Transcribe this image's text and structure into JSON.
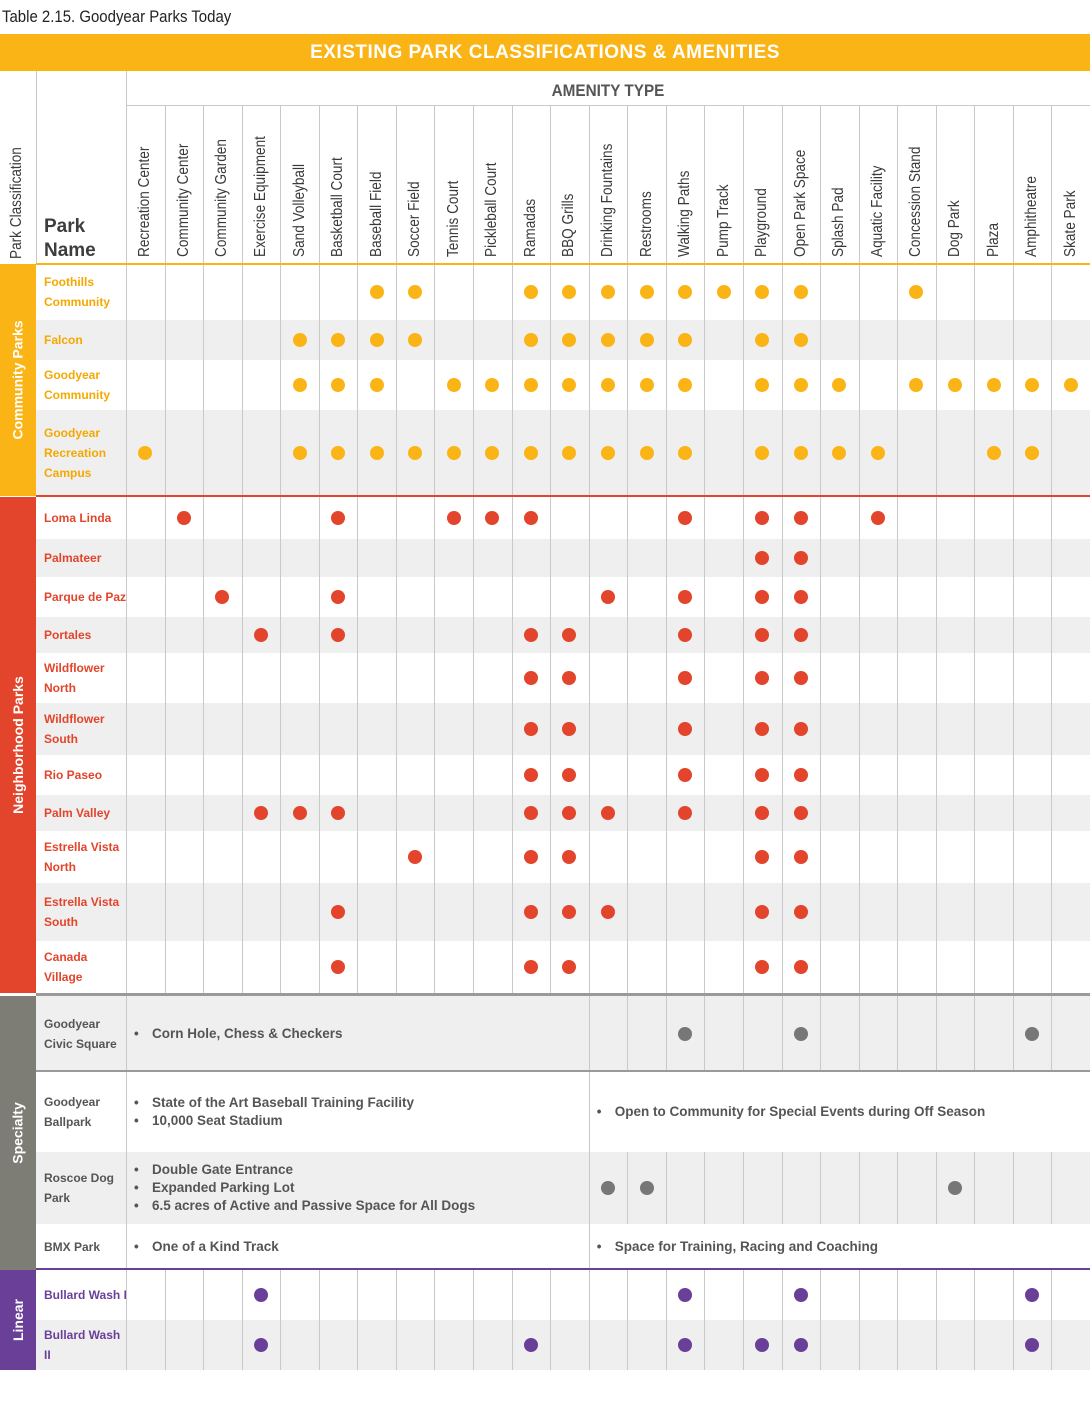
{
  "caption": "Table 2.15. Goodyear Parks Today",
  "banner": "EXISTING PARK CLASSIFICATIONS & AMENITIES",
  "header": {
    "amenity_type": "AMENITY TYPE",
    "park_classification": "Park Classification",
    "park_name": "Park Name"
  },
  "amenities": [
    "Recreation Center",
    "Community Center",
    "Community Garden",
    "Exercise Equipment",
    "Sand Volleyball",
    "Basketball Court",
    "Baseball Field",
    "Soccer Field",
    "Tennis Court",
    "Pickleball Court",
    "Ramadas",
    "BBQ Grills",
    "Drinking Fountains",
    "Restrooms",
    "Walking Paths",
    "Pump Track",
    "Playground",
    "Open Park Space",
    "Splash Pad",
    "Aquatic Facility",
    "Concession Stand",
    "Dog Park",
    "Plaza",
    "Amphitheatre",
    "Skate Park"
  ],
  "colors": {
    "community": "#fbb415",
    "neighborhood": "#e2452b",
    "specialty": "#7d7d75",
    "linear": "#6a3f98",
    "dot_specialty": "#777777",
    "stripe": "#efefef"
  },
  "sections": [
    {
      "key": "community",
      "label": "Community Parks",
      "color": "#fbb415",
      "dot": "#fbb415",
      "text": "#f5a800",
      "rows": [
        {
          "name": "Foothills Community",
          "amenities": [
            6,
            7,
            10,
            11,
            12,
            13,
            14,
            15,
            16,
            17,
            20
          ]
        },
        {
          "name": "Falcon",
          "amenities": [
            4,
            5,
            6,
            7,
            10,
            11,
            12,
            13,
            14,
            16,
            17
          ]
        },
        {
          "name": "Goodyear Community",
          "amenities": [
            4,
            5,
            6,
            8,
            9,
            10,
            11,
            12,
            13,
            14,
            16,
            17,
            18,
            20,
            21,
            22,
            23,
            24
          ]
        },
        {
          "name": "Goodyear Recreation Campus",
          "amenities": [
            0,
            4,
            5,
            6,
            7,
            8,
            9,
            10,
            11,
            12,
            13,
            14,
            16,
            17,
            18,
            19,
            22,
            23
          ]
        }
      ]
    },
    {
      "key": "neighborhood",
      "label": "Neighborhood Parks",
      "color": "#e2452b",
      "dot": "#e2452b",
      "text": "#e2452b",
      "rows": [
        {
          "name": "Loma Linda",
          "amenities": [
            1,
            5,
            8,
            9,
            10,
            14,
            16,
            17,
            19
          ]
        },
        {
          "name": "Palmateer",
          "amenities": [
            16,
            17
          ]
        },
        {
          "name": "Parque de Paz",
          "amenities": [
            2,
            5,
            12,
            14,
            16,
            17
          ]
        },
        {
          "name": "Portales",
          "amenities": [
            3,
            5,
            10,
            11,
            14,
            16,
            17
          ]
        },
        {
          "name": "Wildflower North",
          "amenities": [
            10,
            11,
            14,
            16,
            17
          ]
        },
        {
          "name": "Wildflower South",
          "amenities": [
            10,
            11,
            14,
            16,
            17
          ]
        },
        {
          "name": "Rio Paseo",
          "amenities": [
            10,
            11,
            14,
            16,
            17
          ]
        },
        {
          "name": "Palm Valley",
          "amenities": [
            3,
            4,
            5,
            10,
            11,
            12,
            14,
            16,
            17
          ]
        },
        {
          "name": "Estrella Vista North",
          "amenities": [
            7,
            10,
            11,
            16,
            17
          ]
        },
        {
          "name": "Estrella Vista South",
          "amenities": [
            5,
            10,
            11,
            12,
            16,
            17
          ]
        },
        {
          "name": "Canada Village",
          "amenities": [
            5,
            10,
            11,
            16,
            17
          ]
        }
      ]
    },
    {
      "key": "specialty",
      "label": "Specialty",
      "color": "#7d7d75",
      "dot": "#777777",
      "text": "#555555",
      "rows": [
        {
          "name": "Goodyear Civic Square",
          "amenities": [
            14,
            17,
            23
          ],
          "notes_left": [
            "Corn Hole, Chess & Checkers"
          ],
          "notes_right": []
        },
        {
          "name": "Goodyear Ballpark",
          "amenities": [],
          "notes_left": [
            "State of the Art Baseball Training Facility",
            "10,000 Seat Stadium"
          ],
          "notes_right": [
            "Open to Community for Special Events during Off Season"
          ]
        },
        {
          "name": "Roscoe Dog Park",
          "amenities": [
            12,
            13,
            21
          ],
          "notes_left": [
            "Double Gate Entrance",
            "Expanded Parking Lot",
            "6.5 acres of Active and Passive Space for All Dogs"
          ],
          "notes_right": []
        },
        {
          "name": "BMX Park",
          "amenities": [],
          "notes_left": [
            "One of a Kind Track"
          ],
          "notes_right": [
            "Space for Training, Racing and Coaching"
          ]
        }
      ]
    },
    {
      "key": "linear",
      "label": "Linear",
      "color": "#6a3f98",
      "dot": "#6a3f98",
      "text": "#6a3f98",
      "rows": [
        {
          "name": "Bullard Wash I",
          "amenities": [
            3,
            14,
            17,
            23
          ]
        },
        {
          "name": "Bullard Wash II",
          "amenities": [
            3,
            10,
            14,
            16,
            17,
            23
          ]
        }
      ]
    }
  ]
}
